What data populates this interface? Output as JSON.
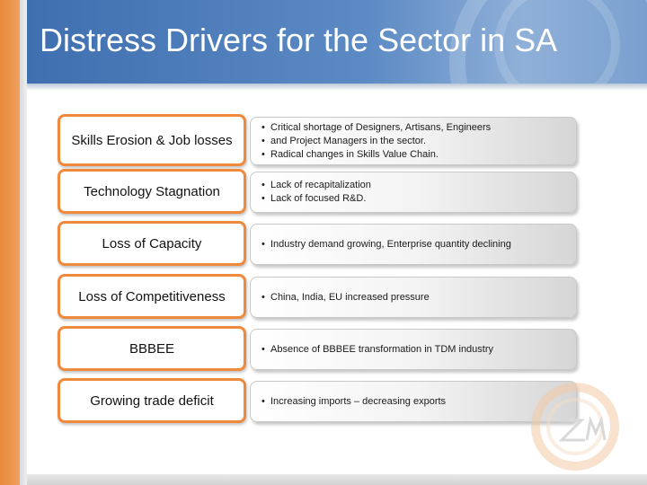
{
  "slide": {
    "title": "Distress Drivers for the Sector in SA"
  },
  "rows": [
    {
      "driver": "Skills Erosion & Job losses",
      "bullets": [
        "Critical shortage of Designers, Artisans, Engineers",
        "and Project Managers in the sector.",
        "Radical changes in Skills Value Chain."
      ]
    },
    {
      "driver": "Technology Stagnation",
      "bullets": [
        "Lack of recapitalization",
        "Lack of focused R&D."
      ]
    },
    {
      "driver": "Loss of Capacity",
      "bullets": [
        "Industry demand growing, Enterprise quantity declining"
      ]
    },
    {
      "driver": "Loss of Competitiveness",
      "bullets": [
        "China, India, EU increased pressure"
      ]
    },
    {
      "driver": "BBBEE",
      "bullets": [
        "Absence of BBBEE transformation in TDM industry"
      ]
    },
    {
      "driver": "Growing trade deficit",
      "bullets": [
        "Increasing imports – decreasing exports"
      ]
    }
  ],
  "bullet_glyph": "•",
  "colors": {
    "accent_orange": "#ef8a3c",
    "header_blue": "#4a78b8"
  },
  "icons": {
    "watermark": "company-logo-watermark-icon"
  }
}
